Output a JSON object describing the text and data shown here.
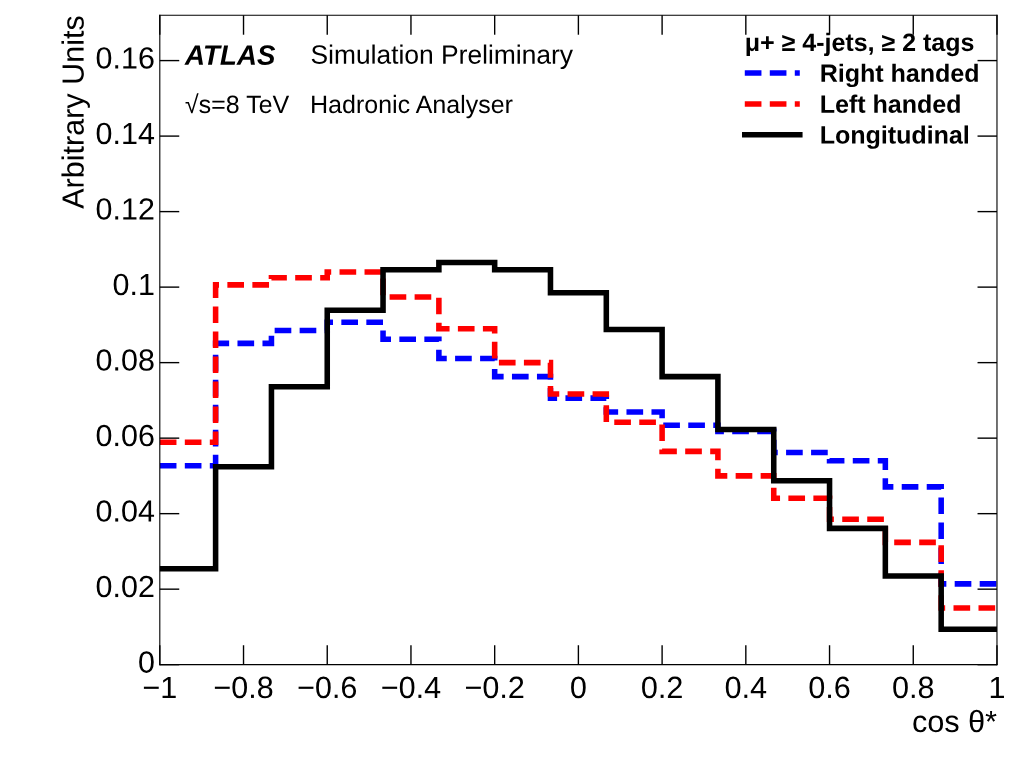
{
  "chart_data": {
    "type": "histogram",
    "xlabel": "cos θ*",
    "ylabel": "Arbitrary Units",
    "legend_title": "μ+ ≥ 4-jets, ≥ 2 tags",
    "annotations": [
      "ATLAS",
      "Simulation Preliminary",
      "√s=8 TeV   Hadronic Analyser"
    ],
    "bins": [
      -1,
      -0.8667,
      -0.7333,
      -0.6,
      -0.4667,
      -0.3333,
      -0.2,
      -0.0667,
      0.0667,
      0.2,
      0.3333,
      0.4667,
      0.6,
      0.7333,
      0.8667,
      1
    ],
    "series": [
      {
        "name": "Right handed",
        "color": "#0000ff",
        "line_style": "dashed",
        "values": [
          0.0527,
          0.0851,
          0.0885,
          0.0907,
          0.0862,
          0.0811,
          0.0763,
          0.0706,
          0.0669,
          0.0634,
          0.0618,
          0.0562,
          0.054,
          0.0471,
          0.0214
        ]
      },
      {
        "name": "Left handed",
        "color": "#ff0000",
        "line_style": "dashed",
        "values": [
          0.0589,
          0.1006,
          0.1025,
          0.104,
          0.0974,
          0.089,
          0.08,
          0.0717,
          0.0642,
          0.0565,
          0.05,
          0.0441,
          0.0385,
          0.0324,
          0.015
        ]
      },
      {
        "name": "Longitudinal",
        "color": "#000000",
        "line_style": "solid",
        "values": [
          0.0254,
          0.0524,
          0.0736,
          0.0939,
          0.1046,
          0.1065,
          0.1046,
          0.0985,
          0.0888,
          0.0763,
          0.0623,
          0.0487,
          0.0361,
          0.0235,
          0.0094
        ]
      }
    ],
    "xlim": [
      -1,
      1
    ],
    "ylim": [
      0,
      0.172
    ],
    "xticks": [
      {
        "value": -1,
        "label": "−1"
      },
      {
        "value": -0.8,
        "label": "−0.8"
      },
      {
        "value": -0.6,
        "label": "−0.6"
      },
      {
        "value": -0.4,
        "label": "−0.4"
      },
      {
        "value": -0.2,
        "label": "−0.2"
      },
      0,
      0.2,
      0.4,
      0.6,
      0.8,
      1
    ],
    "yticks": [
      0,
      0.02,
      0.04,
      0.06,
      0.08,
      {
        "value": 0.1,
        "label": "0.1"
      },
      0.12,
      0.14,
      0.16
    ],
    "grid": false,
    "legend": "top right"
  }
}
